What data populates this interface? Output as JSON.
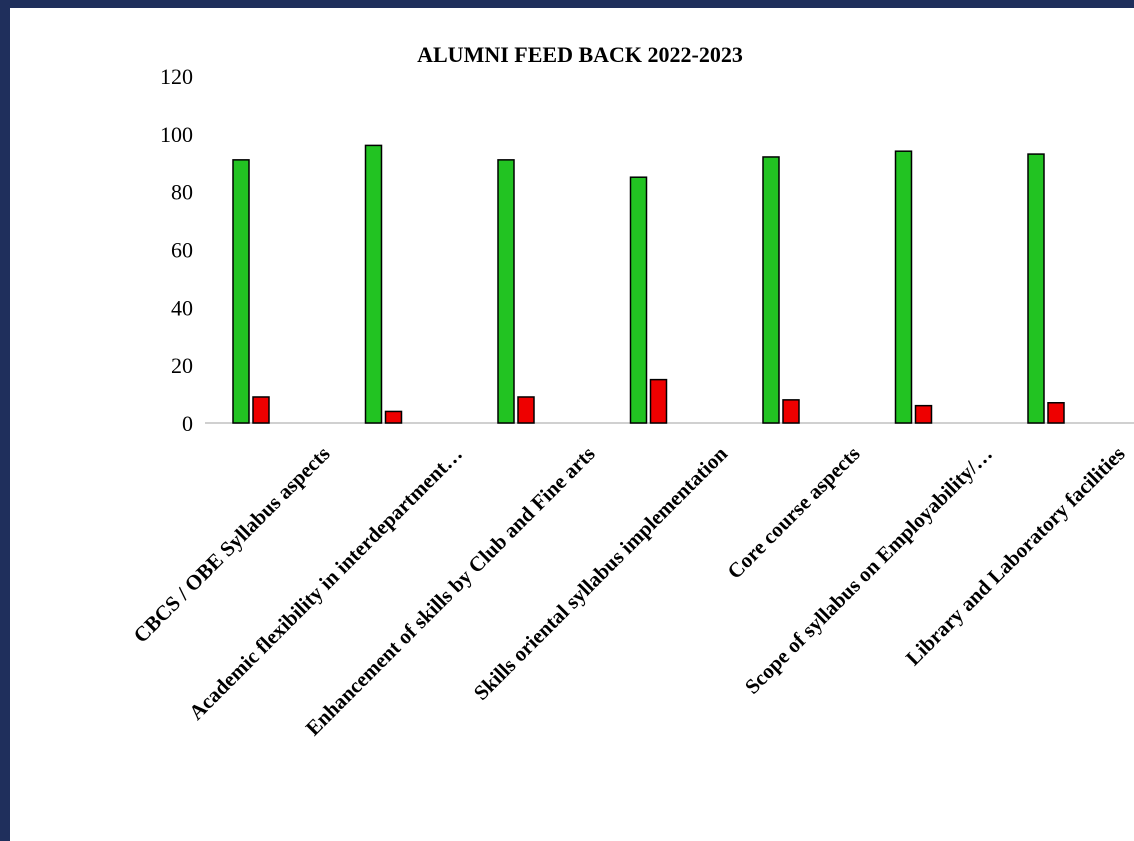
{
  "chart_data": {
    "type": "bar",
    "title": "ALUMNI FEED BACK  2022-2023",
    "xlabel": "",
    "ylabel": "",
    "ylim": [
      0,
      120
    ],
    "yticks": [
      "0",
      "20",
      "40",
      "60",
      "80",
      "100",
      "120"
    ],
    "grid": false,
    "legend": "none",
    "categories": [
      "CBCS / OBE Syllabus aspects",
      "Academic flexibility in interdepartment…",
      "Enhancement of skills by Club and Fine arts",
      "Skills oriental syllabus implementation",
      "Core course aspects",
      "Scope of syllabus on Employability/…",
      "Library and Laboratory facilities"
    ],
    "series": [
      {
        "values": [
          91,
          96,
          91,
          85,
          92,
          94,
          93
        ],
        "color": "#22c322"
      },
      {
        "values": [
          9,
          4,
          9,
          15,
          8,
          6,
          7
        ],
        "color": "#ee0000"
      }
    ]
  },
  "colors": {
    "frame": "#1f2f5c",
    "axis": "#d0d0d0"
  }
}
